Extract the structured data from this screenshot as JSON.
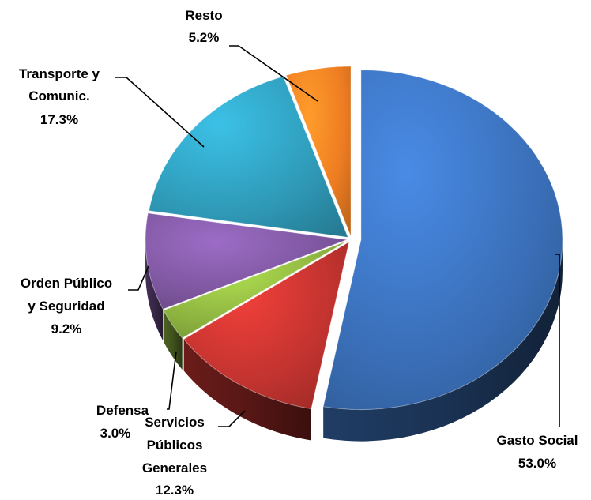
{
  "chart_data": {
    "type": "pie",
    "title": "",
    "slices": [
      {
        "label": "Gasto Social",
        "value": 53.0,
        "display": "53.0%",
        "color": "#3a6fb8"
      },
      {
        "label": "Servicios Públicos Generales",
        "value": 12.3,
        "display": "12.3%",
        "color": "#c2332f"
      },
      {
        "label": "Defensa",
        "value": 3.0,
        "display": "3.0%",
        "color": "#8db340"
      },
      {
        "label": "Orden Público y Seguridad",
        "value": 9.2,
        "display": "9.2%",
        "color": "#7d569e"
      },
      {
        "label": "Transporte y Comunic.",
        "value": 17.3,
        "display": "17.3%",
        "color": "#2f9ab8"
      },
      {
        "label": "Resto",
        "value": 5.2,
        "display": "5.2%",
        "color": "#ee7d22"
      }
    ],
    "labels": {
      "resto": [
        "Resto",
        "5.2%"
      ],
      "transporte": [
        "Transporte y",
        "Comunic.",
        "17.3%"
      ],
      "orden": [
        "Orden Público",
        "y Seguridad",
        "9.2%"
      ],
      "defensa": [
        "Defensa",
        "3.0%"
      ],
      "servicios": [
        "Servicios",
        "Públicos",
        "Generales",
        "12.3%"
      ],
      "gasto": [
        "Gasto Social",
        "53.0%"
      ]
    }
  }
}
